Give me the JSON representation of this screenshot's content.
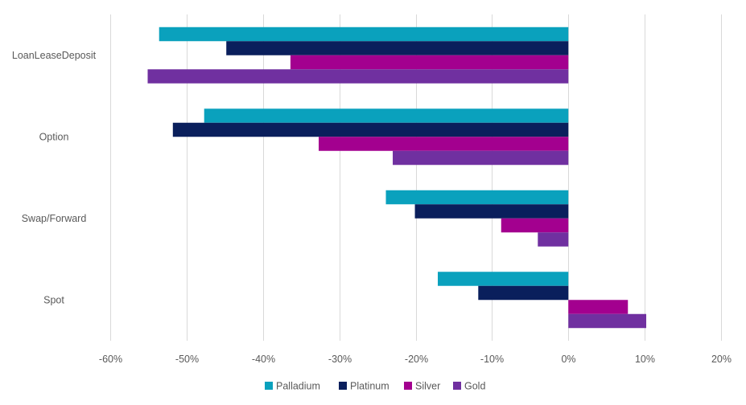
{
  "chart_data": {
    "type": "bar",
    "orientation": "horizontal",
    "categories": [
      "LoanLeaseDeposit",
      "Option",
      "Swap/Forward",
      "Spot"
    ],
    "series": [
      {
        "name": "Palladium",
        "color": "#0aa1bd",
        "values": [
          -53.6,
          -47.7,
          -23.9,
          -17.1
        ]
      },
      {
        "name": "Platinum",
        "color": "#0a1f5c",
        "values": [
          -44.8,
          -51.8,
          -20.1,
          -11.8
        ]
      },
      {
        "name": "Silver",
        "color": "#a3008f",
        "values": [
          -36.4,
          -32.7,
          -8.8,
          7.8
        ]
      },
      {
        "name": "Gold",
        "color": "#7030a0",
        "values": [
          -55.1,
          -23.0,
          -4.0,
          10.2
        ]
      }
    ],
    "xlim": [
      -60,
      20
    ],
    "x_ticks": [
      "-60%",
      "-50%",
      "-40%",
      "-30%",
      "-20%",
      "-10%",
      "0%",
      "10%",
      "20%"
    ],
    "grid": true,
    "legend_position": "bottom",
    "title": "",
    "xlabel": "",
    "ylabel": ""
  }
}
